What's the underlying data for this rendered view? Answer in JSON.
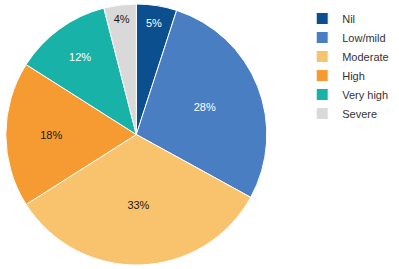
{
  "chart_data": {
    "type": "pie",
    "categories": [
      "Nil",
      "Low/mild",
      "Moderate",
      "High",
      "Very high",
      "Severe"
    ],
    "values": [
      5,
      28,
      33,
      18,
      12,
      4
    ],
    "value_labels": [
      "5%",
      "28%",
      "33%",
      "18%",
      "12%",
      "4%"
    ],
    "colors": [
      "#0b4f8f",
      "#4a7ec2",
      "#f9c36e",
      "#f59b32",
      "#18b2a9",
      "#d9d9d9"
    ],
    "data_labels": true,
    "legend": "right"
  }
}
